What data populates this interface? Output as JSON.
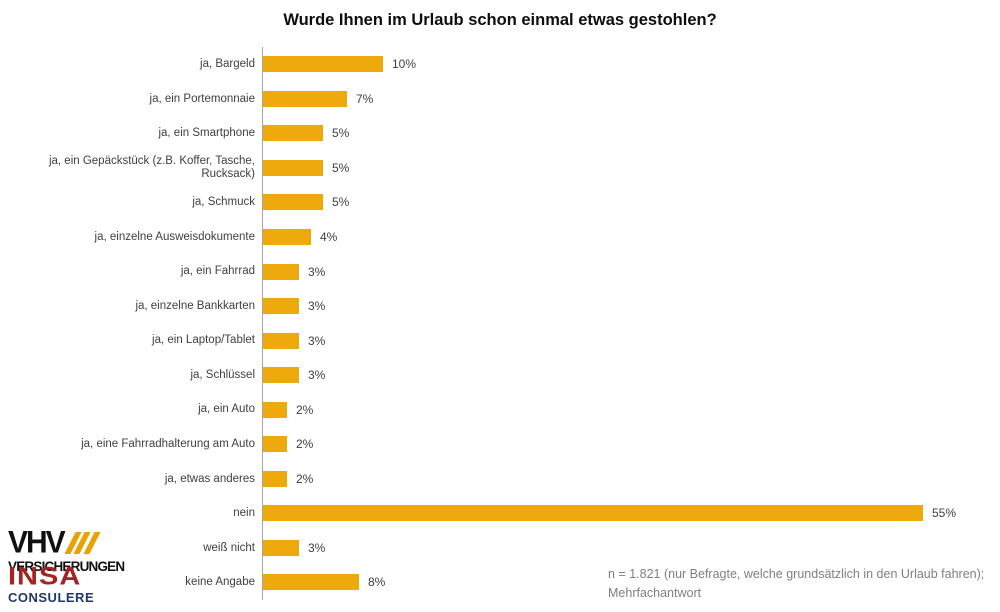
{
  "title": "Wurde Ihnen im Urlaub schon einmal etwas gestohlen?",
  "chart_data": {
    "type": "bar",
    "orientation": "horizontal",
    "title": "Wurde Ihnen im Urlaub schon einmal etwas gestohlen?",
    "categories": [
      "ja, Bargeld",
      "ja, ein Portemonnaie",
      "ja, ein Smartphone",
      "ja, ein Gepäckstück (z.B. Koffer, Tasche, Rucksack)",
      "ja, Schmuck",
      "ja, einzelne Ausweisdokumente",
      "ja, ein Fahrrad",
      "ja, einzelne Bankkarten",
      "ja, ein Laptop/Tablet",
      "ja, Schlüssel",
      "ja, ein Auto",
      "ja, eine Fahrradhalterung am Auto",
      "ja, etwas anderes",
      "nein",
      "weiß nicht",
      "keine Angabe"
    ],
    "values": [
      10,
      7,
      5,
      5,
      5,
      4,
      3,
      3,
      3,
      3,
      2,
      2,
      2,
      55,
      3,
      8
    ],
    "value_labels": [
      "10%",
      "7%",
      "5%",
      "5%",
      "5%",
      "4%",
      "3%",
      "3%",
      "3%",
      "3%",
      "2%",
      "2%",
      "2%",
      "55%",
      "3%",
      "8%"
    ],
    "xlim": [
      0,
      60
    ],
    "unit": "%",
    "bar_color": "#eea90c",
    "grid": false,
    "legend": false
  },
  "footnote": {
    "line1": "n = 1.821 (nur Befragte, welche grundsätzlich in den Urlaub fahren);",
    "line2": "Mehrfachantwort"
  },
  "logos": {
    "vhv": {
      "name": "VHV",
      "slashes_icon": "///",
      "subtitle": "VERSICHERUNGEN"
    },
    "insa": {
      "name": "INSA",
      "subtitle": "CONSULERE"
    }
  },
  "colors": {
    "bar": "#eea90c",
    "axis_line": "#a6a6a6",
    "label_text": "#3f3f3f",
    "footnote_text": "#7f7f7f",
    "vhv_black": "#111111",
    "vhv_gold": "#e8a203",
    "insa_red": "#a32422",
    "insa_blue": "#1e3a6b"
  }
}
